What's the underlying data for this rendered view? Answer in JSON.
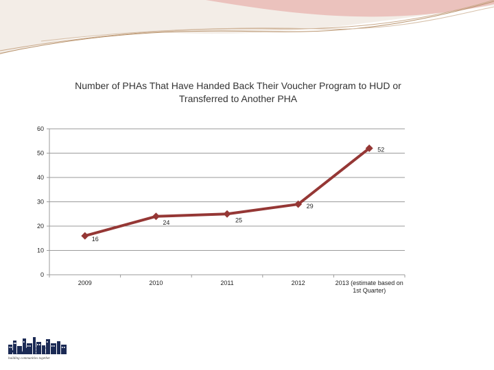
{
  "colors": {
    "line": "#953735",
    "marker": "#953735",
    "axis": "#9a9a9a",
    "grid": "#9a9a9a",
    "deco_brown": "#b7916a",
    "deco_red": "#d98a86",
    "logo_navy": "#1b2a55"
  },
  "logo": {
    "name": "NAHRO",
    "tagline": "building communities together"
  },
  "chart_data": {
    "type": "line",
    "title": "Number of PHAs That Have Handed Back Their Voucher Program to HUD or Transferred to Another PHA",
    "title_lines": [
      "Number of PHAs That Have Handed Back Their Voucher Program to HUD or",
      "Transferred to Another PHA"
    ],
    "categories": [
      "2009",
      "2010",
      "2011",
      "2012",
      "2013 (estimate based on 1st Quarter)"
    ],
    "category_lines": [
      [
        "2009"
      ],
      [
        "2010"
      ],
      [
        "2011"
      ],
      [
        "2012"
      ],
      [
        "2013 (estimate based on",
        "1st Quarter)"
      ]
    ],
    "series": [
      {
        "values": [
          16,
          24,
          25,
          29,
          52
        ]
      }
    ],
    "data_labels": [
      "16",
      "24",
      "25",
      "29",
      "52"
    ],
    "y_ticks": [
      "0",
      "10",
      "20",
      "30",
      "40",
      "50",
      "60"
    ],
    "ylim": [
      0,
      60
    ],
    "grid": true,
    "legend": "none",
    "marker": "diamond"
  }
}
